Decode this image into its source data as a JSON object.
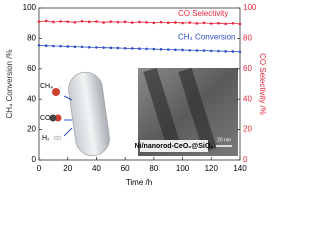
{
  "chart_data": {
    "type": "line",
    "x_label": "Time /h",
    "y_label": "CH₄ Conversion /%",
    "y2_label": "CO Selectivity /%",
    "x": [
      0,
      5,
      10,
      15,
      20,
      25,
      30,
      35,
      40,
      45,
      50,
      55,
      60,
      65,
      70,
      75,
      80,
      85,
      90,
      95,
      100,
      105,
      110,
      115,
      120,
      125,
      130,
      135,
      140
    ],
    "series": [
      {
        "name": "CO Selectivity",
        "color": "#e8283c",
        "axis": "y2",
        "values": [
          91,
          91.5,
          90.8,
          91.2,
          91,
          90.6,
          91.3,
          90.9,
          91.1,
          90.5,
          91,
          90.7,
          90.9,
          90.4,
          90.8,
          90.6,
          90.2,
          90.7,
          90.3,
          90.5,
          90.1,
          90.4,
          89.9,
          90.2,
          89.8,
          90,
          89.6,
          89.9,
          89.5
        ]
      },
      {
        "name": "CH₄ Conversion",
        "color": "#3050c8",
        "values": [
          75.5,
          75.2,
          75,
          74.9,
          74.7,
          74.5,
          74.4,
          74.2,
          74.1,
          73.9,
          73.8,
          73.7,
          73.5,
          73.4,
          73.2,
          73.1,
          73,
          72.8,
          72.7,
          72.5,
          72.4,
          72.2,
          72.1,
          72,
          71.8,
          71.7,
          71.5,
          71.4,
          71.2
        ]
      }
    ],
    "xlim": [
      0,
      140
    ],
    "xticks": [
      0,
      20,
      40,
      60,
      80,
      100,
      120,
      140
    ],
    "ylim": [
      0,
      100
    ],
    "yticks": [
      0,
      20,
      40,
      60,
      80,
      100
    ],
    "y2lim": [
      0,
      100
    ],
    "y2ticks": [
      0,
      20,
      40,
      60,
      80,
      100
    ],
    "annotations": [
      "CH₄",
      "CO",
      "H₂",
      "20 nm",
      "Ni/nanorod-CeO₂@SiO₂"
    ]
  }
}
